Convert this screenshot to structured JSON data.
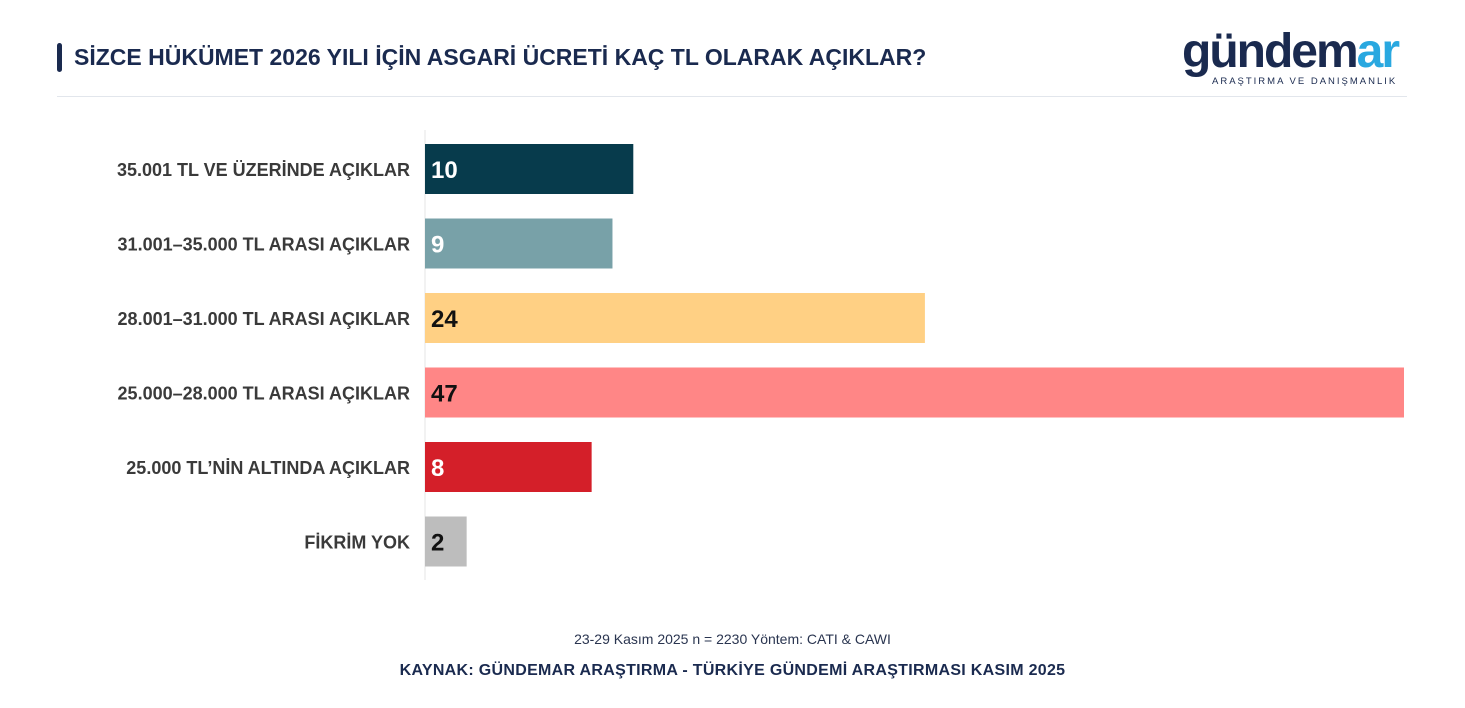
{
  "header": {
    "title": "SİZCE HÜKÜMET 2026 YILI İÇİN ASGARİ ÜCRETİ KAÇ TL OLARAK AÇIKLAR?"
  },
  "logo": {
    "word_main": "gündem",
    "word_accent": "ar",
    "subtitle": "ARAŞTIRMA VE DANIŞMANLIK"
  },
  "footer": {
    "note": "23-29 Kasım 2025 n = 2230 Yöntem: CATI & CAWI",
    "source": "KAYNAK: GÜNDEMAR ARAŞTIRMA - TÜRKİYE GÜNDEMİ ARAŞTIRMASI KASIM 2025"
  },
  "chart_data": {
    "type": "bar",
    "orientation": "horizontal",
    "title": "SİZCE HÜKÜMET 2026 YILI İÇİN ASGARİ ÜCRETİ KAÇ TL OLARAK AÇIKLAR?",
    "categories": [
      "35.001 TL VE ÜZERİNDE AÇIKLAR",
      "31.001–35.000 TL ARASI AÇIKLAR",
      "28.001–31.000 TL ARASI AÇIKLAR",
      "25.000–28.000 TL ARASI AÇIKLAR",
      "25.000 TL’NİN ALTINDA AÇIKLAR",
      "FİKRİM YOK"
    ],
    "values": [
      10,
      9,
      24,
      47,
      8,
      2
    ],
    "colors": [
      "#073b4c",
      "#78a1a8",
      "#ffd084",
      "#ff8686",
      "#d41f29",
      "#bdbdbd"
    ],
    "label_colors": [
      "#ffffff",
      "#ffffff",
      "#111111",
      "#111111",
      "#ffffff",
      "#111111"
    ],
    "xlim": [
      0,
      47
    ],
    "grid": false,
    "xlabel": "",
    "ylabel": ""
  }
}
